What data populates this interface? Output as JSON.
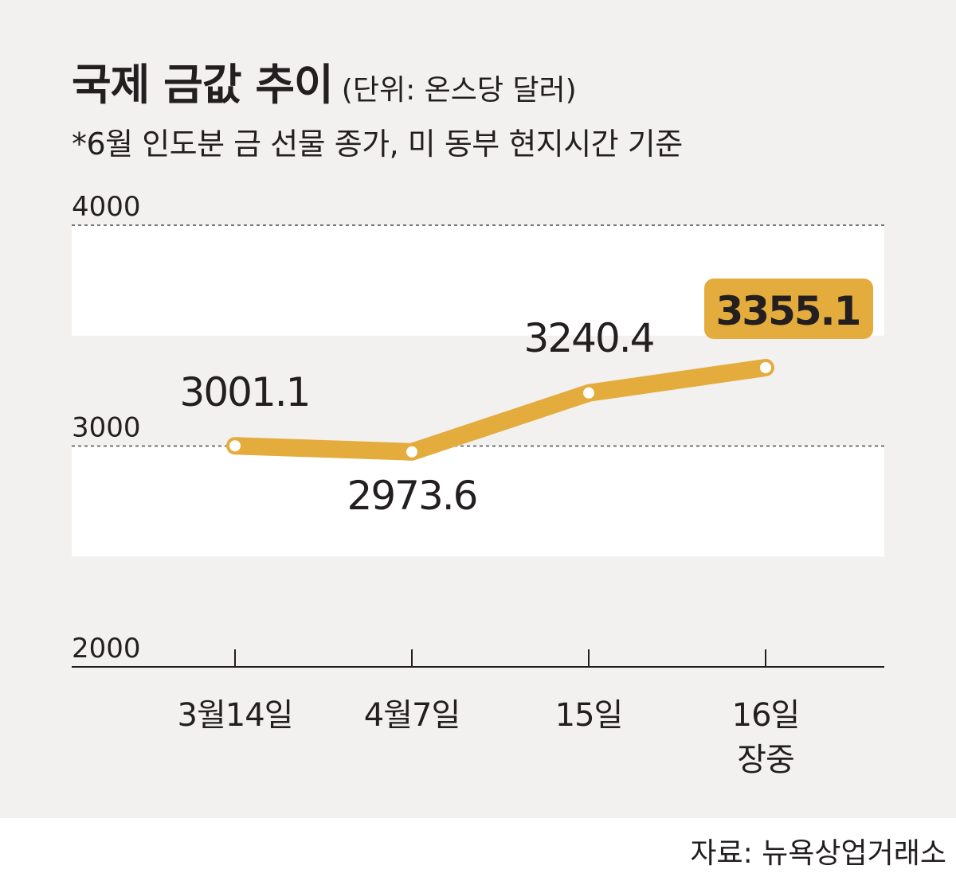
{
  "header": {
    "title": "국제 금값 추이",
    "unit": "(단위: 온스당 달러)",
    "subtitle": "*6월 인도분 금 선물 종가, 미 동부 현지시간 기준"
  },
  "footer": {
    "source": "자료: 뉴욕상업거래소"
  },
  "colors": {
    "line": "#e3ac3c",
    "highlight_box": "#e3ac3c",
    "background": "#f2f1f0",
    "band": "#ffffff",
    "text": "#231f20"
  },
  "chart_data": {
    "type": "line",
    "title": "국제 금값 추이",
    "ylim": [
      2000,
      4000
    ],
    "yticks": [
      "4000",
      "3000",
      "2000"
    ],
    "categories": [
      "3월14일",
      "4월7일",
      "15일",
      "16일 장중"
    ],
    "category_lines": [
      [
        "3월14일"
      ],
      [
        "4월7일"
      ],
      [
        "15일"
      ],
      [
        "16일",
        "장중"
      ]
    ],
    "values": [
      3001.1,
      2973.6,
      3240.4,
      3355.1
    ],
    "data_labels": [
      "3001.1",
      "2973.6",
      "3240.4",
      "3355.1"
    ],
    "highlight_index": 3,
    "grid": true,
    "bands": [
      [
        3500,
        4000
      ],
      [
        2500,
        3000
      ]
    ]
  }
}
